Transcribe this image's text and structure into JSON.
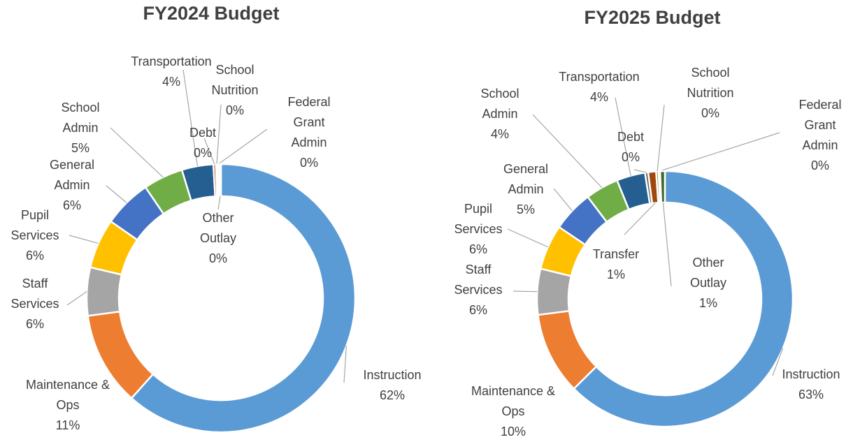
{
  "chart_data": [
    {
      "type": "pie",
      "donut": true,
      "title": "FY2024 Budget",
      "categories": [
        "Instruction",
        "Maintenance & Ops",
        "Staff Services",
        "Pupil Services",
        "General Admin",
        "School Admin",
        "Transportation",
        "Debt",
        "School Nutrition",
        "Federal Grant Admin",
        "Other Outlay"
      ],
      "values": [
        61.6,
        11.3,
        5.8,
        6.0,
        5.8,
        4.8,
        3.8,
        0.3,
        0.2,
        0.2,
        0.2
      ],
      "value_labels": [
        "62%",
        "11%",
        "6%",
        "6%",
        "6%",
        "5%",
        "4%",
        "0%",
        "0%",
        "0%",
        "0%"
      ],
      "colors": [
        "#5b9bd5",
        "#ed7d31",
        "#a5a5a5",
        "#ffc000",
        "#4472c4",
        "#70ad47",
        "#255e91",
        "#9e480e",
        "#636363",
        "#997300",
        "#264478"
      ]
    },
    {
      "type": "pie",
      "donut": true,
      "title": "FY2025 Budget",
      "categories": [
        "Instruction",
        "Maintenance & Ops",
        "Staff Services",
        "Pupil Services",
        "General Admin",
        "School Admin",
        "Transportation",
        "Debt",
        "Transfer",
        "School Nutrition",
        "Federal Grant Admin",
        "Other Outlay"
      ],
      "values": [
        62.6,
        10.4,
        5.8,
        5.7,
        5.2,
        4.2,
        3.6,
        0.4,
        1.0,
        0.3,
        0.2,
        0.6
      ],
      "value_labels": [
        "63%",
        "10%",
        "6%",
        "6%",
        "5%",
        "4%",
        "4%",
        "0%",
        "1%",
        "0%",
        "0%",
        "1%"
      ],
      "colors": [
        "#5b9bd5",
        "#ed7d31",
        "#a5a5a5",
        "#ffc000",
        "#4472c4",
        "#70ad47",
        "#255e91",
        "#636363",
        "#9e480e",
        "#997300",
        "#264478",
        "#43682b"
      ]
    }
  ]
}
